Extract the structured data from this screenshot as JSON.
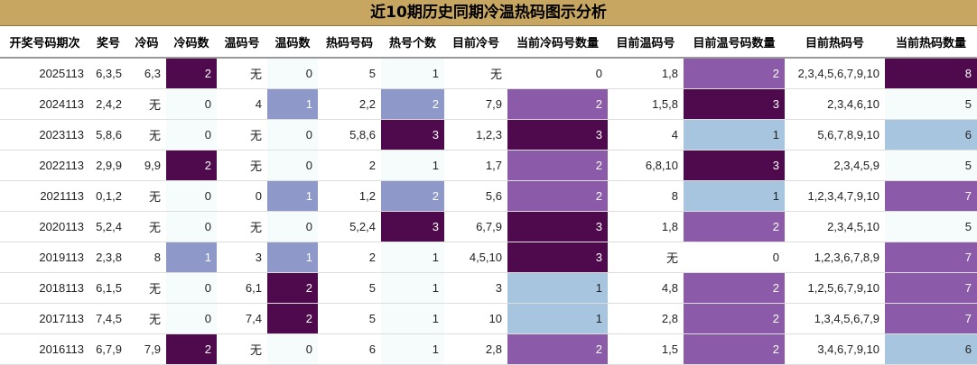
{
  "title": "近10期历史同期冷温热码图示分析",
  "headers": [
    "开奖号码期次",
    "奖号",
    "冷码",
    "冷码数",
    "温码号",
    "温码数",
    "热码号码",
    "热号个数",
    "目前冷号",
    "当前冷码号数量",
    "目前温码号",
    "目前温号码数量",
    "目前热码号",
    "当前热码数量"
  ],
  "rows": [
    [
      "2025113",
      "6,3,5",
      "6,3",
      "2",
      "无",
      "0",
      "5",
      "1",
      "无",
      "0",
      "1,8",
      "2",
      "2,3,4,5,6,7,9,10",
      "8"
    ],
    [
      "2024113",
      "2,4,2",
      "无",
      "0",
      "4",
      "1",
      "2,2",
      "2",
      "7,9",
      "2",
      "1,5,8",
      "3",
      "2,3,4,6,10",
      "5"
    ],
    [
      "2023113",
      "5,8,6",
      "无",
      "0",
      "无",
      "0",
      "5,8,6",
      "3",
      "1,2,3",
      "3",
      "4",
      "1",
      "5,6,7,8,9,10",
      "6"
    ],
    [
      "2022113",
      "2,9,9",
      "9,9",
      "2",
      "无",
      "0",
      "2",
      "1",
      "1,7",
      "2",
      "6,8,10",
      "3",
      "2,3,4,5,9",
      "5"
    ],
    [
      "2021113",
      "0,1,2",
      "无",
      "0",
      "0",
      "1",
      "1,2",
      "2",
      "5,6",
      "2",
      "8",
      "1",
      "1,2,3,4,7,9,10",
      "7"
    ],
    [
      "2020113",
      "5,2,4",
      "无",
      "0",
      "无",
      "0",
      "5,2,4",
      "3",
      "6,7,9",
      "3",
      "1,8",
      "2",
      "2,3,4,5,10",
      "5"
    ],
    [
      "2019113",
      "2,3,8",
      "8",
      "1",
      "3",
      "1",
      "2",
      "1",
      "4,5,10",
      "3",
      "无",
      "0",
      "1,2,3,6,7,8,9",
      "7"
    ],
    [
      "2018113",
      "6,1,5",
      "无",
      "0",
      "6,1",
      "2",
      "5",
      "1",
      "3",
      "1",
      "4,8",
      "2",
      "1,2,5,6,7,9,10",
      "7"
    ],
    [
      "2017113",
      "7,4,5",
      "无",
      "0",
      "7,4",
      "2",
      "5",
      "1",
      "10",
      "1",
      "2,8",
      "2",
      "1,3,4,5,6,7,9",
      "7"
    ],
    [
      "2016113",
      "6,7,9",
      "7,9",
      "2",
      "无",
      "0",
      "6",
      "1",
      "2,8",
      "2",
      "1,5",
      "2",
      "3,4,6,7,9,10",
      "6"
    ]
  ]
}
